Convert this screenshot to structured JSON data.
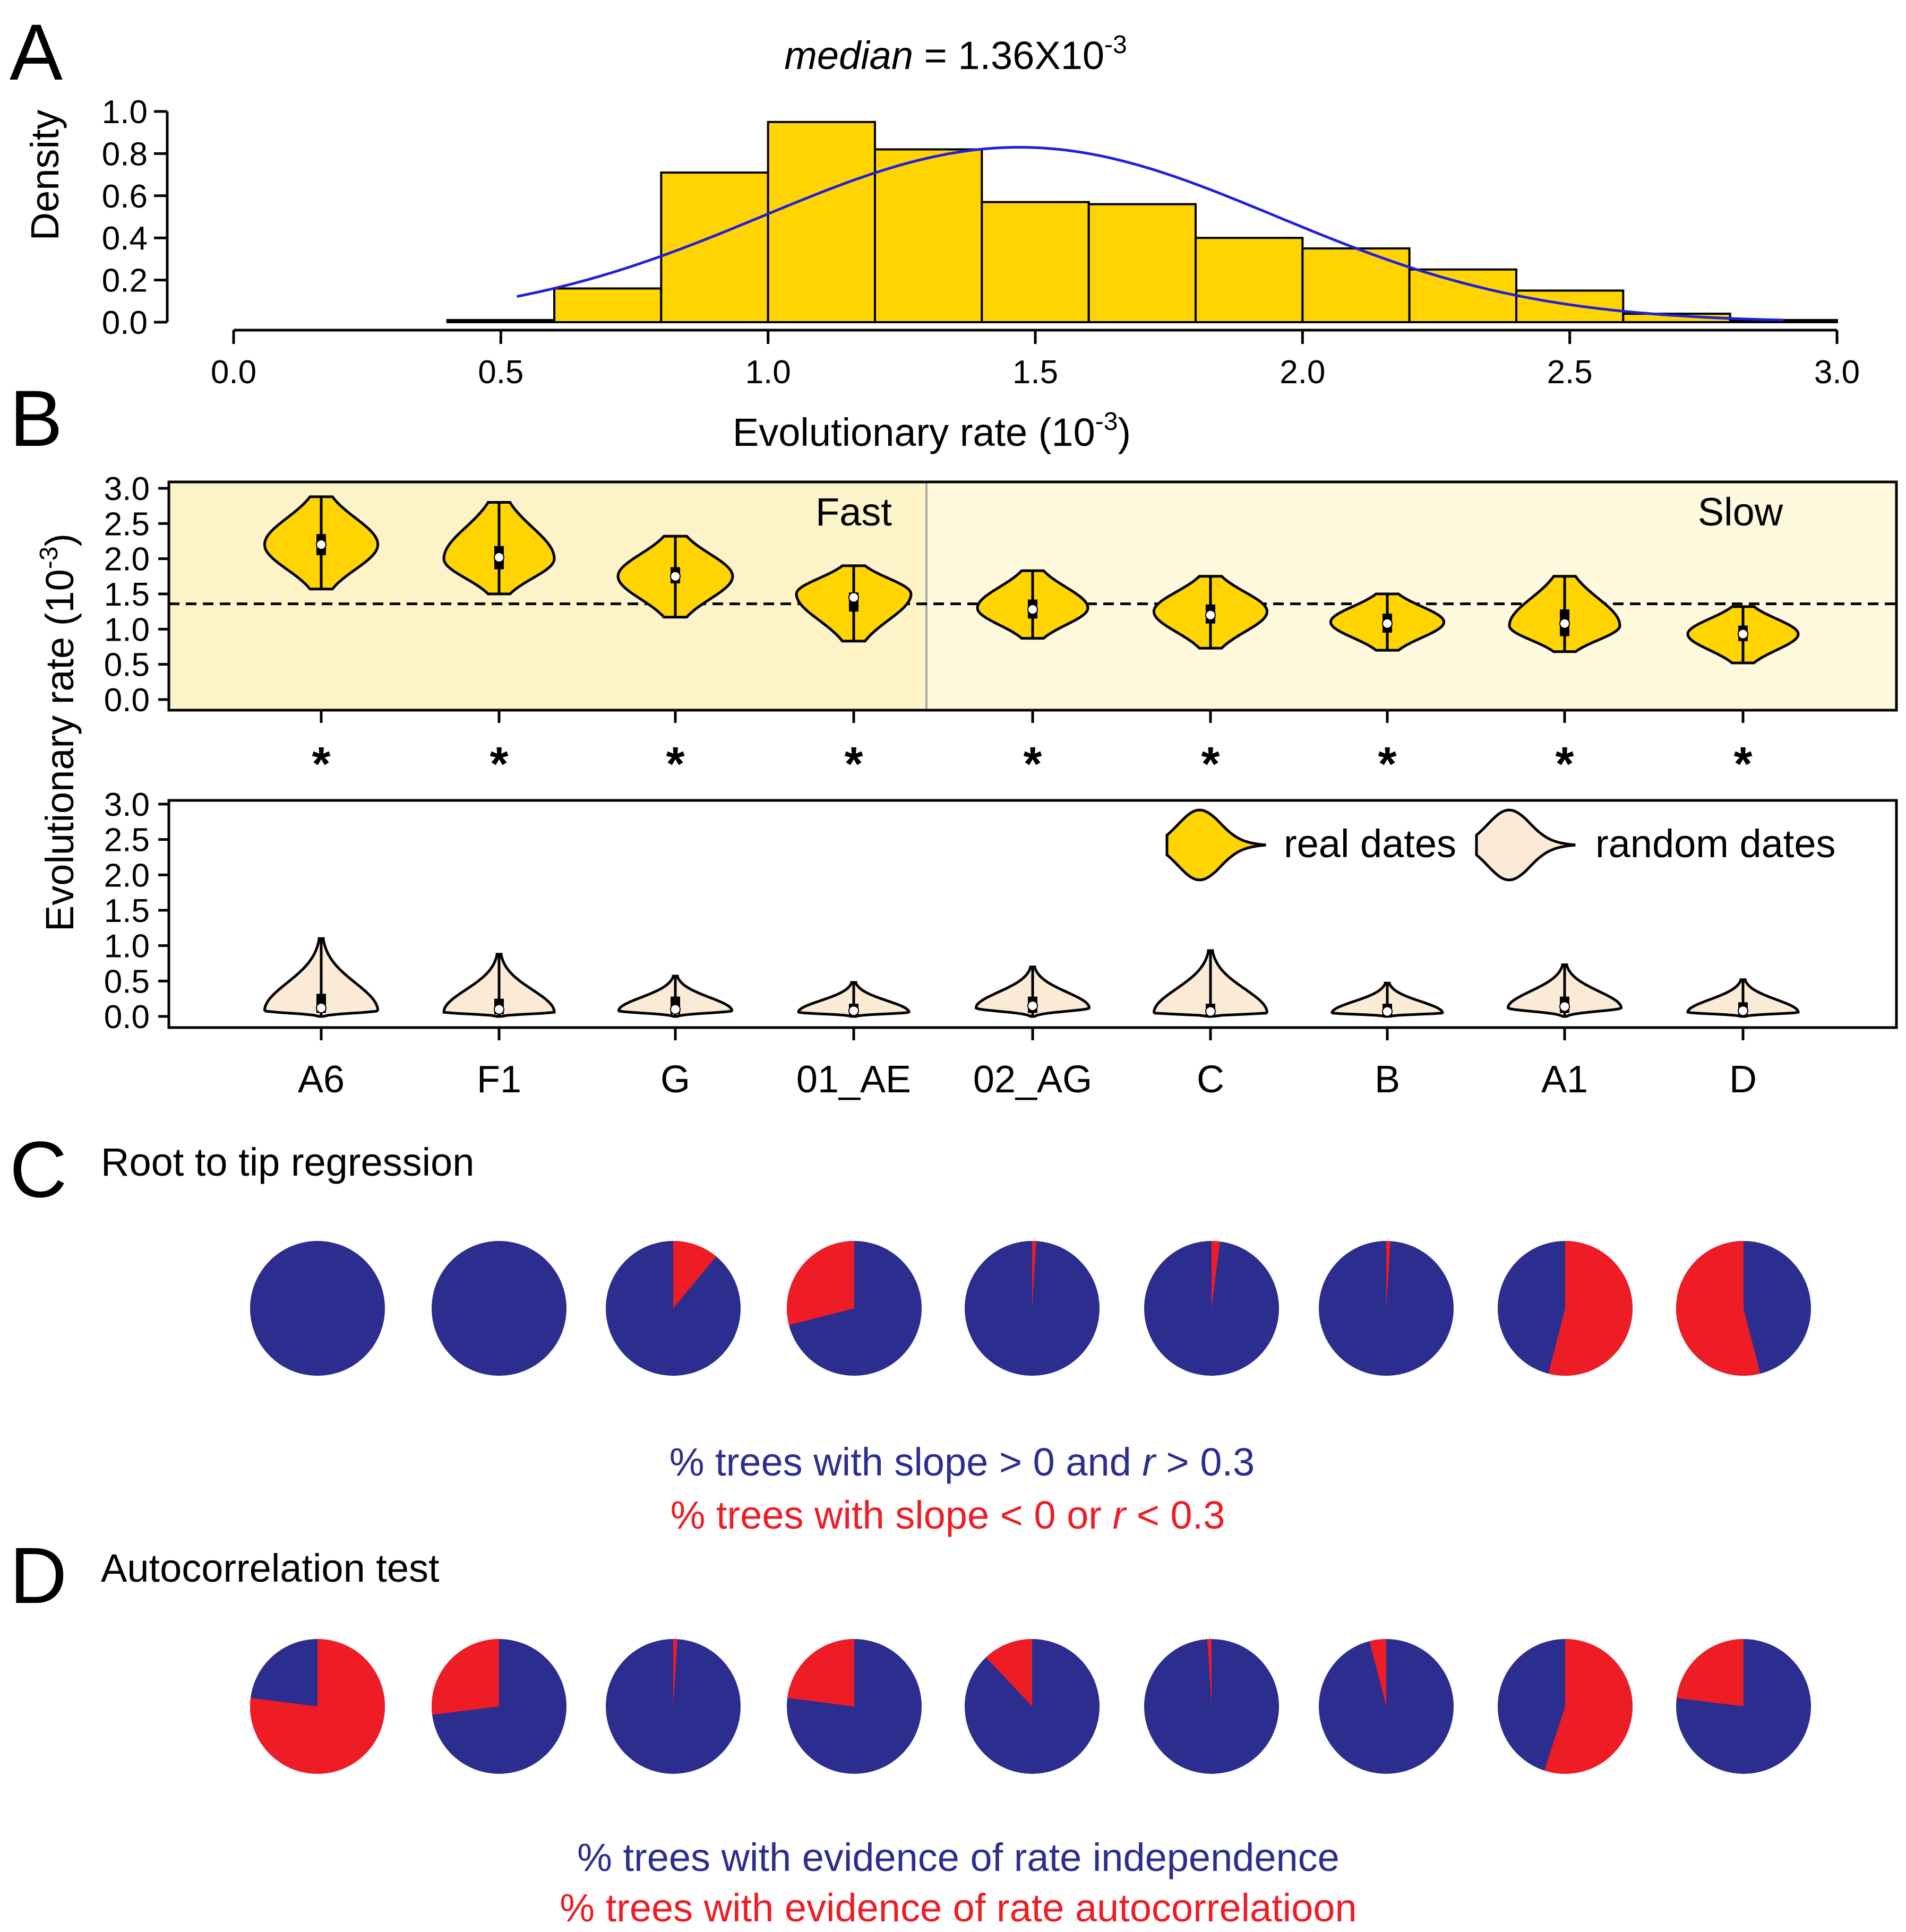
{
  "panels": {
    "A": {
      "label": "A"
    },
    "B": {
      "label": "B"
    },
    "C": {
      "label": "C",
      "title": "Root to tip regression"
    },
    "D": {
      "label": "D",
      "title": "Autocorrelation test"
    }
  },
  "colors": {
    "gold": "#FFD400",
    "cream": "#FBEBD6",
    "bg_fast": "#FCF3C8",
    "bg_slow": "#FEF9DC",
    "navy": "#2B2D8F",
    "red": "#EE1C25",
    "curve": "#1F1FE0"
  },
  "chart_data": [
    {
      "panel": "A",
      "type": "bar",
      "title": {
        "prefix": "median",
        "text": " = 1.36X10",
        "exp": "-3"
      },
      "xlabel": {
        "text": "Evolutionary rate (10",
        "exp": "-3",
        "suffix": ")"
      },
      "ylabel": "Density",
      "xlim": [
        0,
        3
      ],
      "ylim": [
        0,
        1
      ],
      "xticks": [
        "0.0",
        "0.5",
        "1.0",
        "1.5",
        "2.0",
        "2.5",
        "3.0"
      ],
      "yticks": [
        "0.0",
        "0.2",
        "0.4",
        "0.6",
        "0.8",
        "1.0"
      ],
      "bins": [
        {
          "x0": 0.4,
          "x1": 0.6,
          "density": 0.01
        },
        {
          "x0": 0.6,
          "x1": 0.8,
          "density": 0.16
        },
        {
          "x0": 0.8,
          "x1": 1.0,
          "density": 0.71
        },
        {
          "x0": 1.0,
          "x1": 1.2,
          "density": 0.95
        },
        {
          "x0": 1.2,
          "x1": 1.4,
          "density": 0.82
        },
        {
          "x0": 1.4,
          "x1": 1.6,
          "density": 0.57
        },
        {
          "x0": 1.6,
          "x1": 1.8,
          "density": 0.56
        },
        {
          "x0": 1.8,
          "x1": 2.0,
          "density": 0.4
        },
        {
          "x0": 2.0,
          "x1": 2.2,
          "density": 0.35
        },
        {
          "x0": 2.2,
          "x1": 2.4,
          "density": 0.25
        },
        {
          "x0": 2.4,
          "x1": 2.6,
          "density": 0.15
        },
        {
          "x0": 2.6,
          "x1": 2.8,
          "density": 0.04
        },
        {
          "x0": 2.8,
          "x1": 3.0,
          "density": 0.01
        }
      ],
      "density_curve": {
        "mean": 1.47,
        "sd": 0.48,
        "from": 0.53,
        "to": 2.9
      }
    },
    {
      "panel": "B",
      "type": "violin",
      "ylabel": {
        "text": "Evolutionary rate (10",
        "exp": "-3",
        "suffix": ")"
      },
      "ylim": [
        0,
        3
      ],
      "yticks": [
        "0.0",
        "0.5",
        "1.0",
        "1.5",
        "2.0",
        "2.5",
        "3.0"
      ],
      "categories": [
        "A6",
        "F1",
        "G",
        "01_AE",
        "02_AG",
        "C",
        "B",
        "A1",
        "D"
      ],
      "groups": {
        "fast": "Fast",
        "slow": "Slow",
        "fast_count": 4
      },
      "reference_line": 1.36,
      "significance": [
        "*",
        "*",
        "*",
        "*",
        "*",
        "*",
        "*",
        "*",
        "*"
      ],
      "legend": {
        "real": "real dates",
        "random": "random dates"
      },
      "real_dates": [
        {
          "min": 1.57,
          "max": 2.88,
          "q1": 2.05,
          "q3": 2.35,
          "median": 2.2,
          "mode": 2.2,
          "halfwidth": 0.82
        },
        {
          "min": 1.5,
          "max": 2.8,
          "q1": 1.85,
          "q3": 2.18,
          "median": 2.02,
          "mode": 2.0,
          "halfwidth": 0.8
        },
        {
          "min": 1.17,
          "max": 2.32,
          "q1": 1.65,
          "q3": 1.88,
          "median": 1.75,
          "mode": 1.75,
          "halfwidth": 0.83
        },
        {
          "min": 0.83,
          "max": 1.9,
          "q1": 1.25,
          "q3": 1.52,
          "median": 1.45,
          "mode": 1.5,
          "halfwidth": 0.83
        },
        {
          "min": 0.87,
          "max": 1.83,
          "q1": 1.15,
          "q3": 1.42,
          "median": 1.28,
          "mode": 1.3,
          "halfwidth": 0.8
        },
        {
          "min": 0.73,
          "max": 1.75,
          "q1": 1.08,
          "q3": 1.35,
          "median": 1.2,
          "mode": 1.25,
          "halfwidth": 0.82
        },
        {
          "min": 0.7,
          "max": 1.5,
          "q1": 0.95,
          "q3": 1.22,
          "median": 1.08,
          "mode": 1.1,
          "halfwidth": 0.82
        },
        {
          "min": 0.68,
          "max": 1.75,
          "q1": 0.9,
          "q3": 1.28,
          "median": 1.08,
          "mode": 1.05,
          "halfwidth": 0.8
        },
        {
          "min": 0.52,
          "max": 1.32,
          "q1": 0.83,
          "q3": 1.05,
          "median": 0.93,
          "mode": 0.93,
          "halfwidth": 0.8
        }
      ],
      "random_dates": [
        {
          "min": 0.0,
          "max": 1.1,
          "q1": 0.05,
          "q3": 0.32,
          "median": 0.12,
          "mode": 0.08,
          "halfwidth": 0.82
        },
        {
          "min": 0.0,
          "max": 0.88,
          "q1": 0.03,
          "q3": 0.25,
          "median": 0.1,
          "mode": 0.06,
          "halfwidth": 0.8
        },
        {
          "min": 0.0,
          "max": 0.57,
          "q1": 0.03,
          "q3": 0.28,
          "median": 0.1,
          "mode": 0.08,
          "halfwidth": 0.82
        },
        {
          "min": 0.0,
          "max": 0.48,
          "q1": 0.02,
          "q3": 0.18,
          "median": 0.08,
          "mode": 0.06,
          "halfwidth": 0.8
        },
        {
          "min": 0.0,
          "max": 0.7,
          "q1": 0.05,
          "q3": 0.28,
          "median": 0.15,
          "mode": 0.12,
          "halfwidth": 0.82
        },
        {
          "min": 0.0,
          "max": 0.93,
          "q1": 0.02,
          "q3": 0.18,
          "median": 0.07,
          "mode": 0.05,
          "halfwidth": 0.82
        },
        {
          "min": 0.0,
          "max": 0.47,
          "q1": 0.02,
          "q3": 0.18,
          "median": 0.07,
          "mode": 0.05,
          "halfwidth": 0.8
        },
        {
          "min": 0.0,
          "max": 0.73,
          "q1": 0.05,
          "q3": 0.28,
          "median": 0.14,
          "mode": 0.12,
          "halfwidth": 0.82
        },
        {
          "min": 0.0,
          "max": 0.52,
          "q1": 0.03,
          "q3": 0.2,
          "median": 0.08,
          "mode": 0.06,
          "halfwidth": 0.8
        }
      ]
    },
    {
      "panel": "C",
      "type": "pie",
      "title": "Root to tip regression",
      "categories": [
        "A6",
        "F1",
        "G",
        "01_AE",
        "02_AG",
        "C",
        "B",
        "A1",
        "D"
      ],
      "red_percent": [
        0,
        0,
        11,
        29,
        1,
        2,
        1,
        54,
        54
      ],
      "red_start": [
        "none",
        "none",
        "cw",
        "ccw",
        "cw",
        "cw",
        "cw",
        "cw",
        "ccw"
      ],
      "legend": {
        "blue": {
          "pre": "% trees with slope > 0 and ",
          "var": "r",
          "post": " > 0.3"
        },
        "red": {
          "pre": "% trees with slope < 0 or ",
          "var": "r",
          "post": " < 0.3"
        }
      }
    },
    {
      "panel": "D",
      "type": "pie",
      "title": "Autocorrelation test",
      "categories": [
        "A6",
        "F1",
        "G",
        "01_AE",
        "02_AG",
        "C",
        "B",
        "A1",
        "D"
      ],
      "red_percent": [
        77,
        27,
        1,
        23,
        12,
        1,
        4,
        55,
        23
      ],
      "red_start": [
        "cw",
        "ccw",
        "cw",
        "ccw",
        "ccw",
        "ccw",
        "ccw",
        "cw",
        "ccw"
      ],
      "legend": {
        "blue": "% trees with evidence of rate independence",
        "red": "% trees with evidence of rate autocorrelatioon"
      }
    }
  ]
}
